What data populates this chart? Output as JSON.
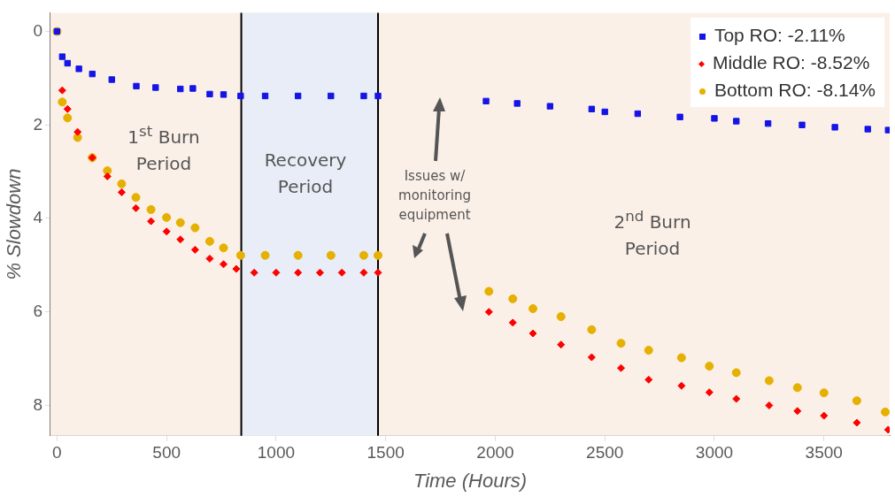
{
  "chart_data": {
    "type": "scatter",
    "xlabel": "Time (Hours)",
    "ylabel": "% Slowdown",
    "xlim": [
      -30,
      3800
    ],
    "xticks": [
      0,
      500,
      1000,
      1500,
      2000,
      2500,
      3000,
      3500
    ],
    "ylim": [
      8.65,
      -0.4
    ],
    "yticks": [
      0,
      2,
      4,
      6,
      8
    ],
    "legend": "top right",
    "grid": false,
    "series": [
      {
        "name": "Top RO: -2.11%",
        "color": "#1414e6",
        "marker": "square",
        "x": [
          0,
          24,
          48,
          100,
          161,
          250,
          362,
          450,
          563,
          620,
          697,
          760,
          838,
          950,
          1100,
          1250,
          1400,
          1465,
          1958,
          2100,
          2250,
          2440,
          2500,
          2650,
          2843,
          3000,
          3100,
          3245,
          3400,
          3550,
          3700,
          3793
        ],
        "values": [
          0,
          0.54,
          0.68,
          0.8,
          0.91,
          1.03,
          1.17,
          1.2,
          1.23,
          1.22,
          1.34,
          1.35,
          1.38,
          1.38,
          1.38,
          1.38,
          1.38,
          1.38,
          1.49,
          1.54,
          1.6,
          1.66,
          1.72,
          1.76,
          1.83,
          1.86,
          1.92,
          1.97,
          2.0,
          2.05,
          2.09,
          2.11
        ]
      },
      {
        "name": "Middle RO: -8.52%",
        "color": "#ff0000",
        "marker": "diamond",
        "x": [
          24,
          48,
          94,
          161,
          230,
          295,
          360,
          429,
          500,
          563,
          630,
          697,
          760,
          818,
          900,
          1000,
          1100,
          1200,
          1300,
          1400,
          1465,
          1971,
          2080,
          2172,
          2300,
          2440,
          2574,
          2700,
          2850,
          2977,
          3100,
          3250,
          3379,
          3500,
          3650,
          3793
        ],
        "values": [
          1.26,
          1.66,
          2.15,
          2.7,
          3.1,
          3.44,
          3.78,
          4.06,
          4.28,
          4.45,
          4.67,
          4.86,
          4.98,
          5.08,
          5.16,
          5.16,
          5.16,
          5.16,
          5.16,
          5.16,
          5.16,
          6.0,
          6.23,
          6.46,
          6.7,
          6.97,
          7.2,
          7.45,
          7.58,
          7.72,
          7.86,
          8.0,
          8.12,
          8.22,
          8.37,
          8.52
        ]
      },
      {
        "name": "Bottom RO: -8.14%",
        "color": "#e6b000",
        "marker": "circle",
        "x": [
          0,
          24,
          48,
          94,
          161,
          230,
          295,
          360,
          429,
          500,
          563,
          630,
          697,
          760,
          838,
          950,
          1100,
          1250,
          1400,
          1465,
          1971,
          2080,
          2172,
          2300,
          2440,
          2574,
          2700,
          2850,
          2977,
          3100,
          3250,
          3379,
          3500,
          3650,
          3780
        ],
        "values": [
          0,
          1.51,
          1.85,
          2.27,
          2.7,
          2.98,
          3.26,
          3.55,
          3.81,
          3.98,
          4.09,
          4.2,
          4.49,
          4.63,
          4.79,
          4.79,
          4.79,
          4.79,
          4.79,
          4.79,
          5.56,
          5.72,
          5.93,
          6.1,
          6.38,
          6.67,
          6.82,
          6.98,
          7.16,
          7.3,
          7.47,
          7.62,
          7.73,
          7.9,
          8.14
        ]
      }
    ],
    "bands": [
      {
        "axis": "x",
        "from": 841,
        "to": 1465,
        "color": "#e8edf7"
      }
    ],
    "ref_lines": [
      {
        "axis": "x",
        "value": 841,
        "color": "#000000"
      },
      {
        "axis": "x",
        "value": 1465,
        "color": "#000000"
      }
    ],
    "annotations": [
      "1$^{st}$ Burn Period",
      "Recovery Period",
      "Issues w/ monitoring equipment",
      "2$^{nd}$ Burn Period"
    ]
  }
}
